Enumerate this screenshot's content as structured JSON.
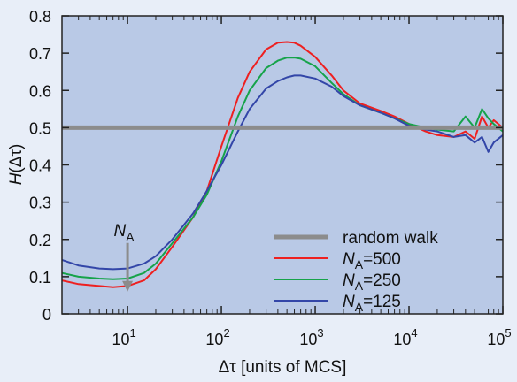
{
  "chart_data": {
    "type": "line",
    "title": "",
    "xlabel": "Δτ [units of MCS]",
    "ylabel": "H(Δτ)",
    "xscale": "log",
    "xlim": [
      2,
      100000
    ],
    "ylim": [
      0,
      0.8
    ],
    "xticks": [
      10,
      100,
      1000,
      10000,
      100000
    ],
    "xtick_labels": [
      {
        "base": "10",
        "exp": "1"
      },
      {
        "base": "10",
        "exp": "2"
      },
      {
        "base": "10",
        "exp": "3"
      },
      {
        "base": "10",
        "exp": "4"
      },
      {
        "base": "10",
        "exp": "5"
      }
    ],
    "yticks": [
      "0",
      "0.1",
      "0.2",
      "0.3",
      "0.4",
      "0.5",
      "0.6",
      "0.7",
      "0.8"
    ],
    "grid": false,
    "legend_position": "bottom-right",
    "colors": {
      "plot_bg": "#b9c9e6",
      "figure_bg": "#e8eef8",
      "random_walk": "#8c8c8c",
      "NA500": "#ee2020",
      "NA250": "#16a34a",
      "NA125": "#3346a8"
    },
    "annotation": {
      "text": "N",
      "sub": "A",
      "x": 10,
      "y_from": 0.2,
      "y_to": 0.06
    },
    "reference_line": {
      "name": "random walk",
      "y": 0.5
    },
    "series": [
      {
        "name": "N=500",
        "name_main": "N",
        "name_sub": "A",
        "name_rest": "=500",
        "color_key": "NA500",
        "x": [
          2,
          3,
          5,
          7,
          10,
          15,
          20,
          30,
          50,
          70,
          100,
          150,
          200,
          300,
          400,
          500,
          600,
          700,
          1000,
          1500,
          2000,
          3000,
          5000,
          7000,
          10000,
          15000,
          20000,
          30000,
          40000,
          50000,
          60000,
          70000,
          80000,
          100000
        ],
        "y": [
          0.09,
          0.08,
          0.075,
          0.072,
          0.075,
          0.09,
          0.12,
          0.18,
          0.26,
          0.33,
          0.45,
          0.58,
          0.65,
          0.71,
          0.728,
          0.73,
          0.728,
          0.72,
          0.69,
          0.64,
          0.6,
          0.565,
          0.545,
          0.53,
          0.51,
          0.49,
          0.48,
          0.475,
          0.49,
          0.47,
          0.53,
          0.5,
          0.52,
          0.5
        ]
      },
      {
        "name": "N=250",
        "name_main": "N",
        "name_sub": "A",
        "name_rest": "=250",
        "color_key": "NA250",
        "x": [
          2,
          3,
          5,
          7,
          10,
          15,
          20,
          30,
          50,
          70,
          100,
          150,
          200,
          300,
          400,
          500,
          600,
          700,
          1000,
          1500,
          2000,
          3000,
          5000,
          7000,
          10000,
          15000,
          20000,
          30000,
          40000,
          50000,
          60000,
          70000,
          80000,
          100000
        ],
        "y": [
          0.11,
          0.1,
          0.095,
          0.093,
          0.095,
          0.11,
          0.135,
          0.19,
          0.26,
          0.32,
          0.41,
          0.53,
          0.6,
          0.66,
          0.68,
          0.688,
          0.688,
          0.685,
          0.665,
          0.62,
          0.59,
          0.56,
          0.54,
          0.525,
          0.51,
          0.5,
          0.495,
          0.49,
          0.53,
          0.5,
          0.55,
          0.525,
          0.51,
          0.49
        ]
      },
      {
        "name": "N=125",
        "name_main": "N",
        "name_sub": "A",
        "name_rest": "=125",
        "color_key": "NA125",
        "x": [
          2,
          3,
          5,
          7,
          10,
          15,
          20,
          30,
          50,
          70,
          100,
          150,
          200,
          300,
          400,
          500,
          600,
          700,
          1000,
          1500,
          2000,
          3000,
          5000,
          7000,
          10000,
          15000,
          20000,
          30000,
          40000,
          50000,
          60000,
          70000,
          80000,
          100000
        ],
        "y": [
          0.145,
          0.13,
          0.122,
          0.12,
          0.122,
          0.135,
          0.155,
          0.2,
          0.27,
          0.33,
          0.4,
          0.49,
          0.55,
          0.605,
          0.625,
          0.635,
          0.64,
          0.64,
          0.632,
          0.61,
          0.585,
          0.56,
          0.54,
          0.525,
          0.505,
          0.495,
          0.49,
          0.475,
          0.48,
          0.46,
          0.475,
          0.435,
          0.46,
          0.48
        ]
      }
    ]
  }
}
